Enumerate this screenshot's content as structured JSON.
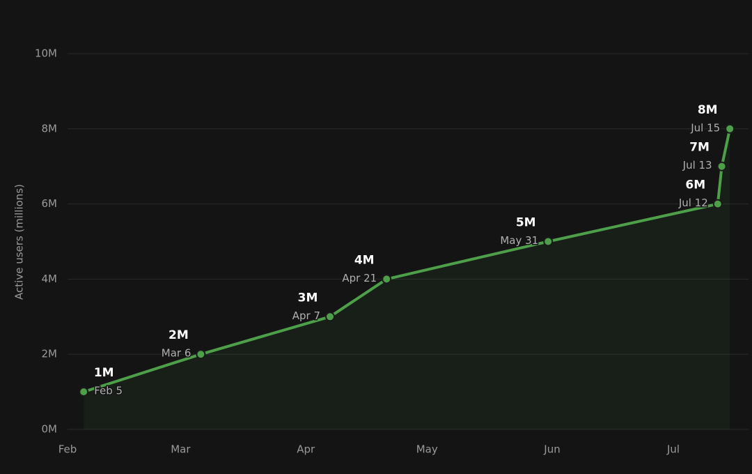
{
  "chart_data": {
    "type": "line",
    "y_label": "Active users (millions)",
    "x": [
      "Feb 5",
      "Mar 6",
      "Apr 7",
      "Apr 21",
      "May 31",
      "Jul 12",
      "Jul 13",
      "Jul 15"
    ],
    "values": [
      1,
      2,
      3,
      4,
      5,
      6,
      7,
      8
    ],
    "value_labels": [
      "1M",
      "2M",
      "3M",
      "4M",
      "5M",
      "6M",
      "7M",
      "8M"
    ],
    "color": "#4e9f4a",
    "xticks": [
      "Feb",
      "Mar",
      "Apr",
      "May",
      "Jun",
      "Jul"
    ],
    "ylim": [
      0,
      10
    ],
    "yticks": [
      {
        "value": 0,
        "label": "0M"
      },
      {
        "value": 2,
        "label": "2M"
      },
      {
        "value": 4,
        "label": "4M"
      },
      {
        "value": 6,
        "label": "6M"
      },
      {
        "value": 8,
        "label": "8M"
      },
      {
        "value": 10,
        "label": "10M"
      }
    ],
    "grid": true
  }
}
